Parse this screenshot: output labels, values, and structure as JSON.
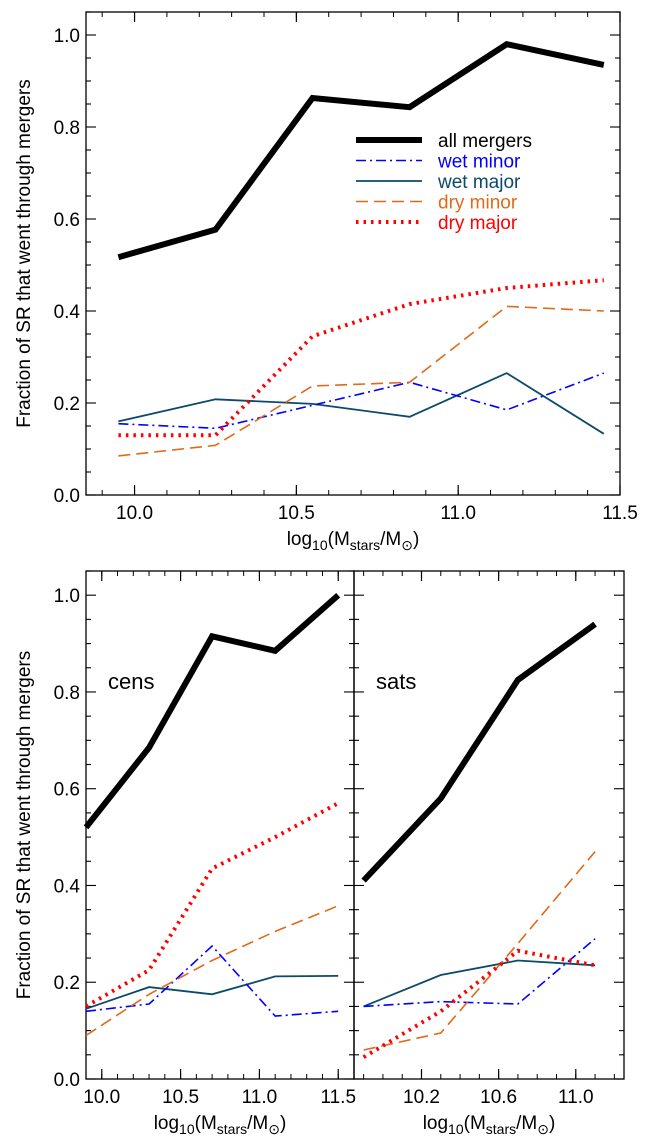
{
  "chart_data": [
    {
      "type": "line",
      "panel": "top",
      "title": "",
      "xlabel": "log10(Mstars/M⊙)",
      "ylabel": "Fraction of SR that went through mergers",
      "xlim": [
        9.85,
        11.5
      ],
      "ylim": [
        0.0,
        1.05
      ],
      "xticks": [
        "10.0",
        "10.5",
        "11.0",
        "11.5"
      ],
      "yticks": [
        "0.0",
        "0.2",
        "0.4",
        "0.6",
        "0.8",
        "1.0"
      ],
      "legend": {
        "placement": "center-right",
        "entries": [
          "all mergers",
          "wet minor",
          "wet major",
          "dry minor",
          "dry major"
        ]
      },
      "x": [
        9.95,
        10.25,
        10.55,
        10.85,
        11.15,
        11.45
      ],
      "series": [
        {
          "name": "all mergers",
          "color": "#000000",
          "style": "solid-thick",
          "values": [
            0.517,
            0.577,
            0.863,
            0.843,
            0.98,
            0.935
          ]
        },
        {
          "name": "wet minor",
          "color": "#0000ff",
          "style": "dash-dot",
          "values": [
            0.155,
            0.145,
            0.195,
            0.245,
            0.185,
            0.265
          ]
        },
        {
          "name": "wet major",
          "color": "#0b4a6a",
          "style": "solid",
          "values": [
            0.16,
            0.208,
            0.198,
            0.17,
            0.265,
            0.133
          ]
        },
        {
          "name": "dry minor",
          "color": "#e06a1a",
          "style": "dashed",
          "values": [
            0.085,
            0.108,
            0.237,
            0.245,
            0.41,
            0.4
          ]
        },
        {
          "name": "dry major",
          "color": "#ff0000",
          "style": "dotted-thick",
          "values": [
            0.13,
            0.13,
            0.345,
            0.415,
            0.45,
            0.467
          ]
        }
      ]
    },
    {
      "type": "line",
      "panel": "bottom-left",
      "label": "cens",
      "xlabel": "log10(Mstars/M⊙)",
      "ylabel": "Fraction of SR that went through mergers",
      "xlim": [
        9.9,
        11.6
      ],
      "ylim": [
        0.0,
        1.05
      ],
      "xticks": [
        "10.0",
        "10.5",
        "11.0",
        "11.5"
      ],
      "yticks": [
        "0.0",
        "0.2",
        "0.4",
        "0.6",
        "0.8",
        "1.0"
      ],
      "x": [
        9.9,
        10.3,
        10.7,
        11.1,
        11.5
      ],
      "series": [
        {
          "name": "all mergers",
          "color": "#000000",
          "style": "solid-thick",
          "values": [
            0.52,
            0.685,
            0.915,
            0.885,
            1.0
          ]
        },
        {
          "name": "wet minor",
          "color": "#0000ff",
          "style": "dash-dot",
          "values": [
            0.14,
            0.155,
            0.275,
            0.13,
            0.14
          ]
        },
        {
          "name": "wet major",
          "color": "#0b4a6a",
          "style": "solid",
          "values": [
            0.145,
            0.19,
            0.175,
            0.212,
            0.213
          ]
        },
        {
          "name": "dry minor",
          "color": "#e06a1a",
          "style": "dashed",
          "values": [
            0.09,
            0.175,
            0.245,
            0.305,
            0.358
          ]
        },
        {
          "name": "dry major",
          "color": "#ff0000",
          "style": "dotted-thick",
          "values": [
            0.15,
            0.225,
            0.435,
            0.5,
            0.57
          ]
        }
      ]
    },
    {
      "type": "line",
      "panel": "bottom-right",
      "label": "sats",
      "xlabel": "log10(Mstars/M⊙)",
      "xlim": [
        9.85,
        11.25
      ],
      "ylim": [
        0.0,
        1.05
      ],
      "xticks": [
        "10.2",
        "10.6",
        "11.0"
      ],
      "x": [
        9.9,
        10.3,
        10.7,
        11.1
      ],
      "series": [
        {
          "name": "all mergers",
          "color": "#000000",
          "style": "solid-thick",
          "values": [
            0.41,
            0.58,
            0.825,
            0.94
          ]
        },
        {
          "name": "wet minor",
          "color": "#0000ff",
          "style": "dash-dot",
          "values": [
            0.15,
            0.16,
            0.155,
            0.29
          ]
        },
        {
          "name": "wet major",
          "color": "#0b4a6a",
          "style": "solid",
          "values": [
            0.15,
            0.215,
            0.245,
            0.235
          ]
        },
        {
          "name": "dry minor",
          "color": "#e06a1a",
          "style": "dashed",
          "values": [
            0.06,
            0.095,
            0.28,
            0.47
          ]
        },
        {
          "name": "dry major",
          "color": "#ff0000",
          "style": "dotted-thick",
          "values": [
            0.045,
            0.14,
            0.265,
            0.235
          ]
        }
      ]
    }
  ]
}
